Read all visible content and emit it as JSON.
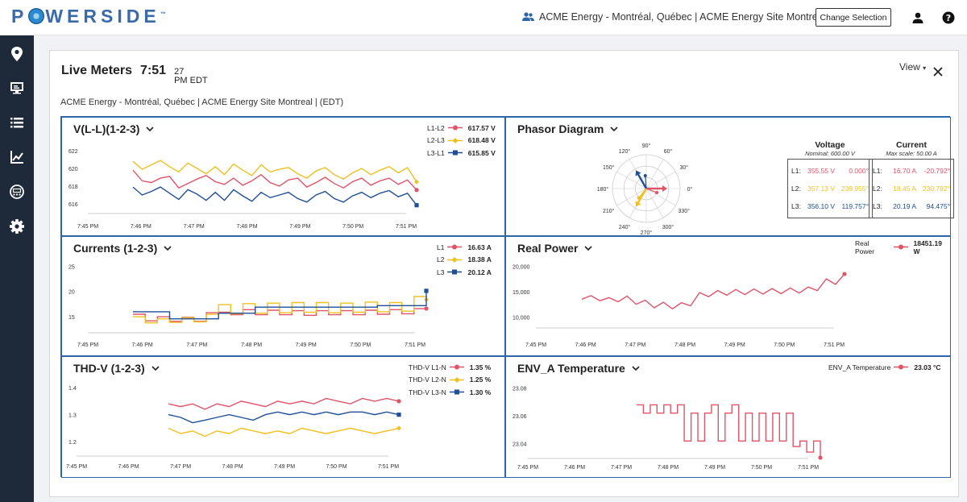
{
  "header": {
    "logo_text": "POWERSIDE",
    "context": "ACME Energy - Montréal, Québec | ACME Energy Site Montreal | (EDT)",
    "change_selection": "Change Selection",
    "icons": [
      "users-icon",
      "user-icon",
      "help-icon"
    ]
  },
  "sidebar": {
    "items": [
      "location-icon",
      "monitor-icon",
      "list-icon",
      "chart-icon",
      "meter-icon",
      "gear-icon"
    ]
  },
  "page": {
    "title": "Live Meters",
    "time": "7:51",
    "time_sup": "27",
    "time_sub": "PM EDT",
    "site": "ACME Energy - Montréal, Québec | ACME Energy Site Montreal | (EDT)",
    "view_label": "View"
  },
  "colors": {
    "l1": "#e05468",
    "l2": "#f0c020",
    "l3": "#1f4f96",
    "accent": "#2d66a8"
  },
  "x_ticks": [
    "7:45 PM",
    "7:46 PM",
    "7:47 PM",
    "7:48 PM",
    "7:49 PM",
    "7:50 PM",
    "7:51 PM"
  ],
  "panels": {
    "vll": {
      "title": "V(L-L)(1-2-3)",
      "legend": [
        {
          "name": "L1-L2",
          "value": "617.57 V"
        },
        {
          "name": "L2-L3",
          "value": "618.48 V"
        },
        {
          "name": "L3-L1",
          "value": "615.85 V"
        }
      ],
      "y_ticks": [
        "622",
        "620",
        "618",
        "616"
      ]
    },
    "currents": {
      "title": "Currents (1-2-3)",
      "legend": [
        {
          "name": "L1",
          "value": "16.63 A"
        },
        {
          "name": "L2",
          "value": "18.38 A"
        },
        {
          "name": "L3",
          "value": "20.12 A"
        }
      ],
      "y_ticks": [
        "25",
        "20",
        "15"
      ]
    },
    "thd": {
      "title": "THD-V (1-2-3)",
      "legend": [
        {
          "name": "THD-V L1-N",
          "value": "1.35 %"
        },
        {
          "name": "THD-V L2-N",
          "value": "1.25 %"
        },
        {
          "name": "THD-V L3-N",
          "value": "1.30 %"
        }
      ],
      "y_ticks": [
        "1.4",
        "1.3",
        "1.2"
      ]
    },
    "phasor": {
      "title": "Phasor Diagram",
      "angles": [
        "90°",
        "60°",
        "30°",
        "0°",
        "330°",
        "300°",
        "270°",
        "240°",
        "210°",
        "180°",
        "150°",
        "120°"
      ],
      "voltage": {
        "head": "Voltage",
        "sub": "Nominal: 600.00 V",
        "rows": [
          {
            "label": "L1:",
            "mag": "355.55 V",
            "ang": "0.000°"
          },
          {
            "label": "L2:",
            "mag": "357.13 V",
            "ang": "239.955°"
          },
          {
            "label": "L3:",
            "mag": "356.10 V",
            "ang": "119.757°"
          }
        ]
      },
      "current": {
        "head": "Current",
        "sub": "Max scale: 50.00 A",
        "rows": [
          {
            "label": "L1:",
            "mag": "16.70 A",
            "ang": "-20.792°"
          },
          {
            "label": "L2:",
            "mag": "18.45 A",
            "ang": "230.782°"
          },
          {
            "label": "L3:",
            "mag": "20.19 A",
            "ang": "94.475°"
          }
        ]
      }
    },
    "power": {
      "title": "Real Power",
      "legend": [
        {
          "name": "Real Power",
          "value": "18451.19 W"
        }
      ],
      "y_ticks": [
        "20,000",
        "15,000",
        "10,000"
      ]
    },
    "temp": {
      "title": "ENV_A Temperature",
      "legend": [
        {
          "name": "ENV_A Temperature",
          "value": "23.03 °C"
        }
      ],
      "y_ticks": [
        "23.08",
        "23.06",
        "23.04"
      ]
    }
  },
  "chart_data": [
    {
      "type": "line",
      "title": "V(L-L)(1-2-3)",
      "ylim": [
        615,
        623
      ],
      "x_range": [
        "7:45 PM",
        "7:51 PM"
      ],
      "series": [
        {
          "name": "L1-L2",
          "values": [
            619.8,
            618.6,
            618.4,
            618.9,
            619.1,
            617.8,
            618.3,
            618.8,
            619.2,
            618.5,
            618.2,
            618.9,
            618.1,
            618.6,
            619.3,
            618.4,
            618.0,
            618.7,
            618.9,
            617.9,
            618.4,
            619.0,
            618.3,
            617.8,
            618.5,
            618.9,
            618.1,
            618.6,
            618.9,
            618.2,
            618.7,
            617.57
          ]
        },
        {
          "name": "L2-L3",
          "values": [
            620.8,
            619.9,
            620.4,
            620.9,
            620.2,
            619.6,
            620.6,
            620.0,
            619.4,
            620.2,
            619.3,
            620.5,
            619.8,
            619.2,
            620.4,
            619.6,
            619.9,
            620.1,
            619.4,
            618.9,
            619.7,
            620.1,
            619.3,
            618.8,
            619.5,
            620.0,
            619.3,
            619.8,
            620.2,
            619.5,
            620.1,
            618.48
          ]
        },
        {
          "name": "L3-L1",
          "values": [
            617.9,
            617.0,
            617.4,
            617.9,
            617.2,
            616.5,
            617.6,
            617.1,
            616.4,
            617.3,
            616.4,
            617.6,
            616.9,
            616.3,
            617.3,
            616.7,
            617.0,
            617.3,
            616.6,
            616.2,
            617.0,
            617.4,
            616.6,
            616.2,
            616.9,
            617.3,
            616.7,
            617.2,
            617.5,
            616.8,
            617.2,
            615.85
          ]
        }
      ]
    },
    {
      "type": "line",
      "title": "Currents (1-2-3)",
      "ylim": [
        12,
        26
      ],
      "x_range": [
        "7:45 PM",
        "7:51 PM"
      ],
      "series": [
        {
          "name": "L1",
          "values": [
            15.5,
            14.2,
            15.0,
            14.1,
            14.9,
            14.1,
            15.8,
            15.9,
            15.4,
            16.4,
            15.4,
            16.3,
            15.4,
            16.2,
            15.3,
            16.2,
            15.4,
            16.2,
            15.4,
            16.3,
            15.5,
            16.4,
            15.6,
            16.6,
            16.63
          ]
        },
        {
          "name": "L2",
          "values": [
            15.0,
            13.8,
            14.6,
            13.9,
            14.8,
            14.0,
            15.5,
            17.4,
            15.6,
            17.6,
            15.7,
            17.7,
            15.8,
            17.8,
            15.9,
            17.8,
            15.8,
            17.7,
            15.9,
            17.9,
            16.0,
            17.8,
            16.1,
            19.0,
            18.38
          ]
        },
        {
          "name": "L3",
          "values": [
            16.0,
            16.0,
            16.0,
            14.6,
            14.6,
            14.6,
            14.6,
            15.7,
            15.7,
            15.7,
            16.9,
            16.9,
            16.9,
            16.9,
            16.9,
            16.9,
            16.9,
            16.9,
            16.9,
            16.9,
            17.2,
            17.2,
            17.2,
            17.2,
            20.12
          ]
        }
      ]
    },
    {
      "type": "line",
      "title": "THD-V (1-2-3)",
      "ylim": [
        1.15,
        1.43
      ],
      "x_range": [
        "7:45 PM",
        "7:51 PM"
      ],
      "series": [
        {
          "name": "THD-V L1-N",
          "values": [
            1.34,
            1.33,
            1.34,
            1.32,
            1.34,
            1.33,
            1.35,
            1.34,
            1.33,
            1.35,
            1.34,
            1.35,
            1.34,
            1.36,
            1.35,
            1.34,
            1.36,
            1.35,
            1.36,
            1.35
          ]
        },
        {
          "name": "THD-V L2-N",
          "values": [
            1.25,
            1.23,
            1.24,
            1.22,
            1.24,
            1.23,
            1.25,
            1.24,
            1.23,
            1.24,
            1.23,
            1.25,
            1.24,
            1.23,
            1.24,
            1.25,
            1.24,
            1.23,
            1.24,
            1.25
          ]
        },
        {
          "name": "THD-V L3-N",
          "values": [
            1.3,
            1.29,
            1.27,
            1.28,
            1.29,
            1.3,
            1.29,
            1.28,
            1.3,
            1.31,
            1.3,
            1.31,
            1.3,
            1.31,
            1.3,
            1.31,
            1.31,
            1.3,
            1.31,
            1.3
          ]
        }
      ]
    },
    {
      "type": "line",
      "title": "Real Power",
      "ylim": [
        8000,
        21000
      ],
      "x_range": [
        "7:45 PM",
        "7:51 PM"
      ],
      "series": [
        {
          "name": "Real Power",
          "values": [
            13500,
            14200,
            13200,
            13800,
            13000,
            14100,
            12500,
            13300,
            11800,
            12900,
            11600,
            12800,
            12200,
            14800,
            14000,
            15200,
            14300,
            15400,
            14400,
            15500,
            14500,
            15600,
            14600,
            15700,
            14700,
            15900,
            15200,
            17500,
            16400,
            18451.19
          ]
        }
      ]
    },
    {
      "type": "line",
      "title": "ENV_A Temperature",
      "ylim": [
        23.03,
        23.085
      ],
      "x_range": [
        "7:45 PM",
        "7:51 PM"
      ],
      "series": [
        {
          "name": "ENV_A Temperature",
          "values": [
            23.068,
            23.062,
            23.068,
            23.062,
            23.068,
            23.062,
            23.068,
            23.042,
            23.062,
            23.042,
            23.062,
            23.068,
            23.042,
            23.062,
            23.068,
            23.042,
            23.062,
            23.042,
            23.062,
            23.042,
            23.062,
            23.042,
            23.062,
            23.038,
            23.042,
            23.034,
            23.042,
            23.03
          ]
        }
      ]
    }
  ]
}
